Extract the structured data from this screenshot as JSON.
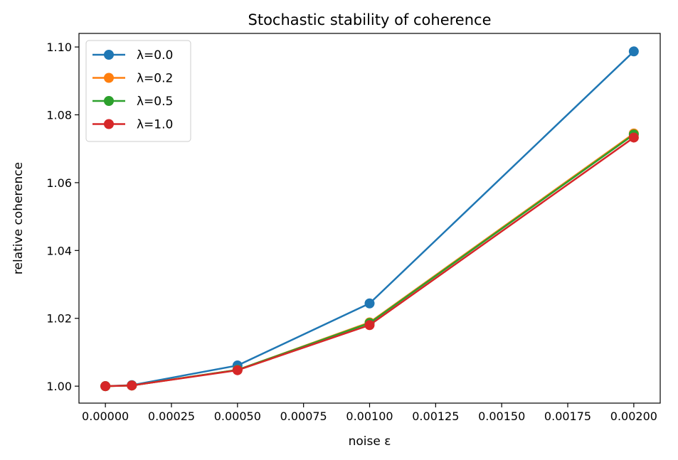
{
  "chart_data": {
    "type": "line",
    "title": "Stochastic stability of coherence",
    "xlabel": "noise ε",
    "ylabel": "relative coherence",
    "xlim": [
      -0.0001,
      0.0021
    ],
    "ylim": [
      0.995,
      1.104
    ],
    "x_ticks": [
      0.0,
      0.00025,
      0.0005,
      0.00075,
      0.001,
      0.00125,
      0.0015,
      0.00175,
      0.002
    ],
    "x_tick_labels": [
      "0.00000",
      "0.00025",
      "0.00050",
      "0.00075",
      "0.00100",
      "0.00125",
      "0.00150",
      "0.00175",
      "0.00200"
    ],
    "y_ticks": [
      1.0,
      1.02,
      1.04,
      1.06,
      1.08,
      1.1
    ],
    "y_tick_labels": [
      "1.00",
      "1.02",
      "1.04",
      "1.06",
      "1.08",
      "1.10"
    ],
    "grid": false,
    "legend_position": "top-left",
    "x": [
      0.0,
      0.0001,
      0.0005,
      0.001,
      0.002
    ],
    "series": [
      {
        "name": "λ=0.0",
        "color": "#1f77b4",
        "values": [
          1.0,
          1.0003,
          1.0061,
          1.0244,
          1.0987
        ]
      },
      {
        "name": "λ=0.2",
        "color": "#ff7f0e",
        "values": [
          1.0,
          1.0002,
          1.0048,
          1.0188,
          1.0745
        ]
      },
      {
        "name": "λ=0.5",
        "color": "#2ca02c",
        "values": [
          1.0,
          1.0002,
          1.0048,
          1.0186,
          1.0742
        ]
      },
      {
        "name": "λ=1.0",
        "color": "#d62728",
        "values": [
          1.0,
          1.0002,
          1.0047,
          1.018,
          1.0733
        ]
      }
    ]
  }
}
